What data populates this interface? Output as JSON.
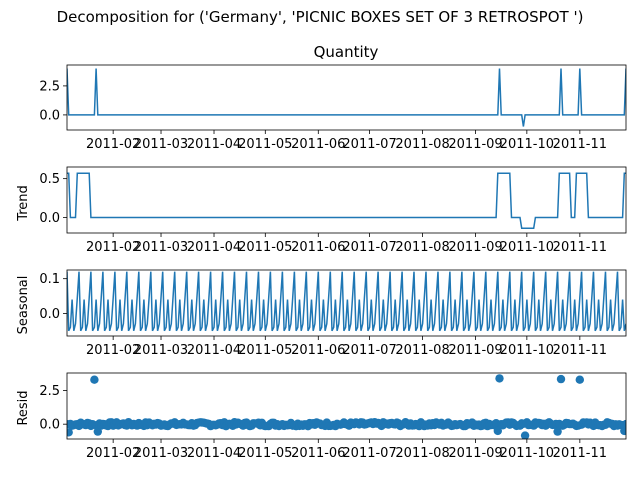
{
  "suptitle": "Decomposition for ('Germany', 'PICNIC BOXES SET OF 3 RETROSPOT ')",
  "colors": {
    "line": "#1f77b4",
    "marker": "#1f77b4",
    "axis": "#000000"
  },
  "chart_data": [
    {
      "type": "line",
      "title": "Quantity",
      "ylabel": "",
      "xlim": [
        "2011-01-05",
        "2011-11-28"
      ],
      "ylim": [
        -1.3,
        4.3
      ],
      "yticks": [
        0.0,
        2.5
      ],
      "ytick_labels": [
        "0.0",
        "2.5"
      ],
      "xtick_labels": [
        "2011-02",
        "2011-03",
        "2011-04",
        "2011-05",
        "2011-06",
        "2011-07",
        "2011-08",
        "2011-09",
        "2011-10",
        "2011-11"
      ],
      "x": [
        "2011-01-05",
        "2011-01-06",
        "2011-01-21",
        "2011-01-22",
        "2011-01-23",
        "2011-01-24",
        "2011-09-14",
        "2011-09-15",
        "2011-09-16",
        "2011-09-28",
        "2011-09-29",
        "2011-09-30",
        "2011-10-20",
        "2011-10-21",
        "2011-10-22",
        "2011-10-31",
        "2011-11-01",
        "2011-11-02",
        "2011-11-27",
        "2011-11-28"
      ],
      "values": [
        4.0,
        0.0,
        0.0,
        4.0,
        0.0,
        0.0,
        0.0,
        4.0,
        0.0,
        0.0,
        -1.0,
        0.0,
        0.0,
        4.0,
        0.0,
        0.0,
        4.0,
        0.0,
        0.0,
        4.0
      ]
    },
    {
      "type": "line",
      "title": "",
      "ylabel": "Trend",
      "xlim": [
        "2011-01-05",
        "2011-11-28"
      ],
      "ylim": [
        -0.2,
        0.65
      ],
      "yticks": [
        0.0,
        0.5
      ],
      "ytick_labels": [
        "0.0",
        "0.5"
      ],
      "xtick_labels": [
        "2011-02",
        "2011-03",
        "2011-04",
        "2011-05",
        "2011-06",
        "2011-07",
        "2011-08",
        "2011-09",
        "2011-10",
        "2011-11"
      ],
      "x": [
        "2011-01-06",
        "2011-01-07",
        "2011-01-10",
        "2011-01-11",
        "2011-01-18",
        "2011-01-19",
        "2011-09-13",
        "2011-09-14",
        "2011-09-21",
        "2011-09-22",
        "2011-09-27",
        "2011-09-28",
        "2011-10-05",
        "2011-10-06",
        "2011-10-19",
        "2011-10-20",
        "2011-10-26",
        "2011-10-27",
        "2011-10-29",
        "2011-10-30",
        "2011-11-05",
        "2011-11-06",
        "2011-11-26",
        "2011-11-27"
      ],
      "values": [
        0.57,
        0.0,
        0.0,
        0.57,
        0.57,
        0.0,
        0.0,
        0.57,
        0.57,
        0.0,
        0.0,
        -0.14,
        -0.14,
        0.0,
        0.0,
        0.57,
        0.57,
        0.0,
        0.0,
        0.57,
        0.57,
        0.0,
        0.0,
        0.57
      ]
    },
    {
      "type": "line",
      "title": "",
      "ylabel": "Seasonal",
      "xlim": [
        "2011-01-05",
        "2011-11-28"
      ],
      "ylim": [
        -0.065,
        0.125
      ],
      "yticks": [
        0.0,
        0.1
      ],
      "ytick_labels": [
        "0.0",
        "0.1"
      ],
      "xtick_labels": [
        "2011-02",
        "2011-03",
        "2011-04",
        "2011-05",
        "2011-06",
        "2011-07",
        "2011-08",
        "2011-09",
        "2011-10",
        "2011-11"
      ],
      "period_days": 7,
      "pattern": [
        0.12,
        -0.05,
        -0.04,
        0.04,
        -0.05,
        -0.03,
        0.045
      ]
    },
    {
      "type": "scatter",
      "title": "",
      "ylabel": "Resid",
      "xlim": [
        "2011-01-05",
        "2011-11-28"
      ],
      "ylim": [
        -1.1,
        3.8
      ],
      "yticks": [
        0.0,
        2.5
      ],
      "ytick_labels": [
        "0.0",
        "2.5"
      ],
      "xtick_labels": [
        "2011-02",
        "2011-03",
        "2011-04",
        "2011-05",
        "2011-06",
        "2011-07",
        "2011-08",
        "2011-09",
        "2011-10",
        "2011-11"
      ],
      "outliers": [
        {
          "x": "2011-01-21",
          "y": 3.3
        },
        {
          "x": "2011-09-15",
          "y": 3.4
        },
        {
          "x": "2011-10-21",
          "y": 3.35
        },
        {
          "x": "2011-11-01",
          "y": 3.3
        },
        {
          "x": "2011-09-30",
          "y": -0.85
        },
        {
          "x": "2011-01-06",
          "y": -0.6
        },
        {
          "x": "2011-01-23",
          "y": -0.55
        },
        {
          "x": "2011-09-14",
          "y": -0.5
        },
        {
          "x": "2011-10-19",
          "y": -0.55
        },
        {
          "x": "2011-11-27",
          "y": -0.5
        }
      ],
      "baseline_range": [
        -0.15,
        0.15
      ]
    }
  ]
}
